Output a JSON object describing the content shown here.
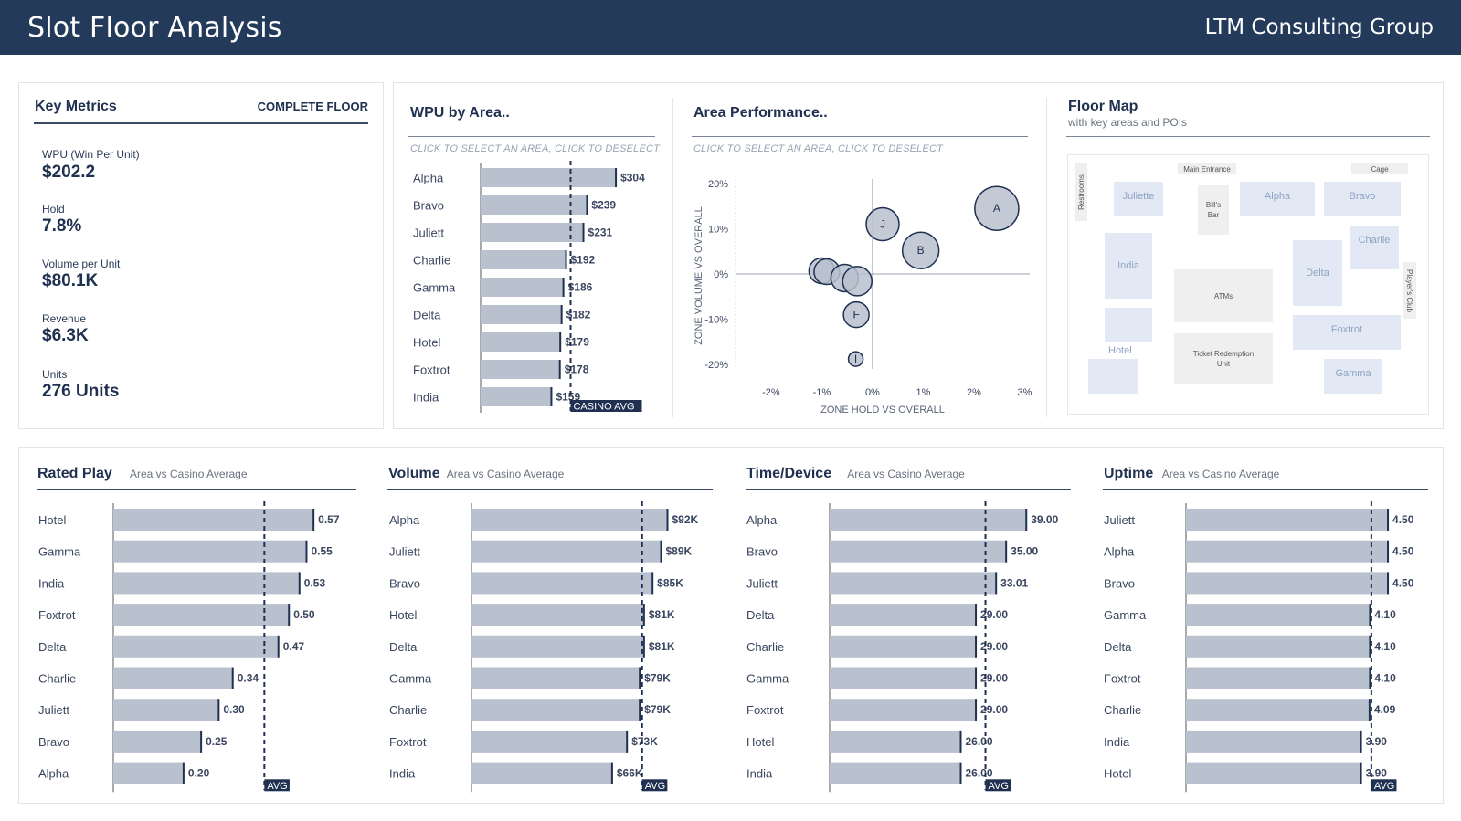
{
  "header": {
    "title": "Slot Floor Analysis",
    "brand": "LTM Consulting Group"
  },
  "key_metrics": {
    "title": "Key Metrics",
    "scope": "COMPLETE FLOOR",
    "items": [
      {
        "label": "WPU (Win Per Unit)",
        "value": "$202.2"
      },
      {
        "label": "Hold",
        "value": "7.8%"
      },
      {
        "label": "Volume per Unit",
        "value": "$80.1K"
      },
      {
        "label": "Revenue",
        "value": "$6.3K"
      },
      {
        "label": "Units",
        "value": "276 Units"
      }
    ]
  },
  "wpu": {
    "title": "WPU by Area..",
    "hint": "CLICK TO SELECT AN AREA, CLICK TO DESELECT"
  },
  "perf": {
    "title": "Area Performance..",
    "hint": "CLICK TO SELECT AN AREA, CLICK TO DESELECT"
  },
  "floor_map": {
    "title": "Floor Map",
    "subtitle": "with key areas and POIs",
    "areas": [
      "Juliette",
      "Alpha",
      "Bravo",
      "Charlie",
      "India",
      "Delta",
      "Foxtrot",
      "Hotel",
      "Gamma"
    ],
    "pois": [
      "Main Entrance",
      "Cage",
      "Restrooms",
      "Bill's Bar",
      "ATMs",
      "Ticket Redemption Unit",
      "Player's Club"
    ]
  },
  "colors": {
    "header": "#243a5a",
    "bar": "#b9c1cf",
    "ink": "#1f3050",
    "map_area": "#e3e9f4"
  },
  "chart_data": [
    {
      "type": "bar",
      "id": "wpu",
      "orientation": "horizontal",
      "categories": [
        "Alpha",
        "Bravo",
        "Juliett",
        "Charlie",
        "Gamma",
        "Delta",
        "Hotel",
        "Foxtrot",
        "India"
      ],
      "values": [
        304,
        239,
        231,
        192,
        186,
        182,
        179,
        178,
        159
      ],
      "labels": [
        "$304",
        "$239",
        "$231",
        "$192",
        "$186",
        "$182",
        "$179",
        "$178",
        "$159"
      ],
      "reference": {
        "label": "CASINO AVG",
        "value": 202.2
      },
      "xlim": [
        0,
        310
      ]
    },
    {
      "type": "scatter",
      "id": "perf",
      "xlabel": "ZONE HOLD VS OVERALL",
      "ylabel": "ZONE VOLUME VS OVERALL",
      "xlim": [
        -2.7,
        3.1
      ],
      "ylim": [
        -21,
        21
      ],
      "xticks": [
        -2,
        -1,
        0,
        1,
        2,
        3
      ],
      "xtick_labels": [
        "-2%",
        "-1%",
        "0%",
        "1%",
        "2%",
        "3%"
      ],
      "yticks": [
        20,
        10,
        0,
        -10,
        -20
      ],
      "ytick_labels": [
        "20%",
        "10%",
        "0%",
        "-10%",
        "-20%"
      ],
      "points": [
        {
          "label": "A",
          "x": 2.45,
          "y": 14.5,
          "r": 24
        },
        {
          "label": "J",
          "x": 0.2,
          "y": 11,
          "r": 18
        },
        {
          "label": "B",
          "x": 0.95,
          "y": 5.2,
          "r": 20
        },
        {
          "label": "",
          "x": -1,
          "y": 0.7,
          "r": 14
        },
        {
          "label": "",
          "x": -0.9,
          "y": 0.5,
          "r": 14
        },
        {
          "label": "",
          "x": -0.55,
          "y": -0.9,
          "r": 15
        },
        {
          "label": "",
          "x": -0.3,
          "y": -1.6,
          "r": 16
        },
        {
          "label": "F",
          "x": -0.32,
          "y": -9,
          "r": 14
        },
        {
          "label": "I",
          "x": -0.33,
          "y": -18.8,
          "r": 8
        }
      ]
    },
    {
      "type": "bar",
      "id": "rated",
      "title": "Rated Play",
      "subtitle": "Area vs Casino Average",
      "orientation": "horizontal",
      "categories": [
        "Hotel",
        "Gamma",
        "India",
        "Foxtrot",
        "Delta",
        "Charlie",
        "Juliett",
        "Bravo",
        "Alpha"
      ],
      "values": [
        0.57,
        0.55,
        0.53,
        0.5,
        0.47,
        0.34,
        0.3,
        0.25,
        0.2
      ],
      "labels": [
        "0.57",
        "0.55",
        "0.53",
        "0.50",
        "0.47",
        "0.34",
        "0.30",
        "0.25",
        "0.20"
      ],
      "reference": {
        "label": "AVG",
        "value": 0.43
      },
      "xlim": [
        0,
        0.58
      ]
    },
    {
      "type": "bar",
      "id": "volume",
      "title": "Volume",
      "subtitle": "Area vs Casino Average",
      "orientation": "horizontal",
      "categories": [
        "Alpha",
        "Juliett",
        "Bravo",
        "Hotel",
        "Delta",
        "Gamma",
        "Charlie",
        "Foxtrot",
        "India"
      ],
      "values": [
        92,
        89,
        85,
        81,
        81,
        79,
        79,
        73,
        66
      ],
      "labels": [
        "$92K",
        "$89K",
        "$85K",
        "$81K",
        "$81K",
        "$79K",
        "$79K",
        "$73K",
        "$66K"
      ],
      "reference": {
        "label": "AVG",
        "value": 80.1
      },
      "xlim": [
        0,
        93.5
      ]
    },
    {
      "type": "bar",
      "id": "time",
      "title": "Time/Device",
      "subtitle": "Area vs Casino Average",
      "orientation": "horizontal",
      "categories": [
        "Alpha",
        "Bravo",
        "Juliett",
        "Delta",
        "Charlie",
        "Gamma",
        "Foxtrot",
        "Hotel",
        "India"
      ],
      "values": [
        39.0,
        35.0,
        33.01,
        29.0,
        29.0,
        29.0,
        29.0,
        26.0,
        26.0
      ],
      "labels": [
        "39.00",
        "35.00",
        "33.01",
        "29.00",
        "29.00",
        "29.00",
        "29.00",
        "26.00",
        "26.00"
      ],
      "reference": {
        "label": "AVG",
        "value": 30.9
      },
      "xlim": [
        0,
        39.5
      ]
    },
    {
      "type": "bar",
      "id": "uptime",
      "title": "Uptime",
      "subtitle": "Area vs Casino Average",
      "orientation": "horizontal",
      "categories": [
        "Juliett",
        "Alpha",
        "Bravo",
        "Gamma",
        "Delta",
        "Foxtrot",
        "Charlie",
        "India",
        "Hotel"
      ],
      "values": [
        4.5,
        4.5,
        4.5,
        4.1,
        4.1,
        4.1,
        4.09,
        3.9,
        3.9
      ],
      "labels": [
        "4.50",
        "4.50",
        "4.50",
        "4.10",
        "4.10",
        "4.10",
        "4.09",
        "3.90",
        "3.90"
      ],
      "reference": {
        "label": "AVG",
        "value": 4.13
      },
      "xlim": [
        0,
        4.56
      ]
    }
  ]
}
